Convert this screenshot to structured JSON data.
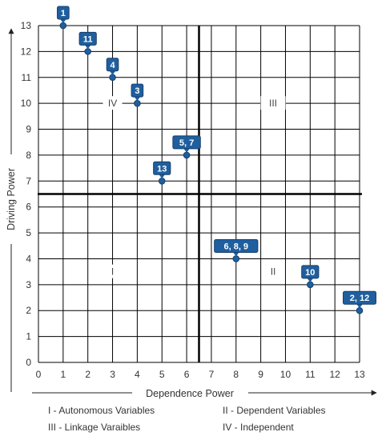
{
  "chart_data": {
    "type": "scatter",
    "xlabel": "Dependence Power",
    "ylabel": "Driving Power",
    "xlim": [
      0,
      13
    ],
    "ylim": [
      0,
      13
    ],
    "x_ticks": [
      0,
      1,
      2,
      3,
      4,
      5,
      6,
      7,
      8,
      9,
      10,
      11,
      12,
      13
    ],
    "y_ticks": [
      0,
      1,
      2,
      3,
      4,
      5,
      6,
      7,
      8,
      9,
      10,
      11,
      12,
      13
    ],
    "grid": true,
    "divider_x": 6.5,
    "divider_y": 6.5,
    "points": [
      {
        "label": "1",
        "x": 1,
        "y": 13
      },
      {
        "label": "11",
        "x": 2,
        "y": 12
      },
      {
        "label": "4",
        "x": 3,
        "y": 11
      },
      {
        "label": "3",
        "x": 4,
        "y": 10
      },
      {
        "label": "5, 7",
        "x": 6,
        "y": 8
      },
      {
        "label": "13",
        "x": 5,
        "y": 7
      },
      {
        "label": "6, 8, 9",
        "x": 8,
        "y": 4
      },
      {
        "label": "10",
        "x": 11,
        "y": 3
      },
      {
        "label": "2, 12",
        "x": 13,
        "y": 2
      }
    ],
    "quadrant_labels": [
      {
        "text": "IV",
        "x": 3,
        "y": 10
      },
      {
        "text": "III",
        "x": 9.5,
        "y": 10
      },
      {
        "text": "I",
        "x": 3,
        "y": 3.5
      },
      {
        "text": "II",
        "x": 9.5,
        "y": 3.5
      }
    ],
    "legend": [
      "I - Autonomous Variables",
      "II - Dependent Variables",
      "III - Linkage Varaibles",
      "IV - Independent"
    ]
  },
  "colors": {
    "marker": "#1f5f9f",
    "marker_dark": "#163f6a",
    "grid": "#000000",
    "divider": "#000000"
  }
}
